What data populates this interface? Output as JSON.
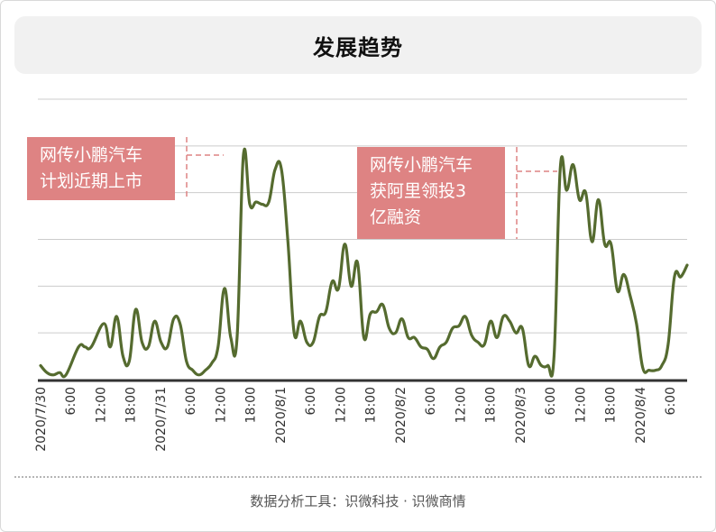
{
  "title": "发展趋势",
  "footer": "数据分析工具：识微科技 · 识微商情",
  "annotations": [
    {
      "lines": [
        "网传小鹏汽车",
        "计划近期上市"
      ]
    },
    {
      "lines": [
        "网传小鹏汽车",
        "获阿里领投3",
        "亿融资"
      ]
    }
  ],
  "colors": {
    "line": "#556b2f",
    "annotation": "#de8383",
    "grid": "#cccccc",
    "baseline": "#333333"
  },
  "chart_data": {
    "type": "line",
    "title": "",
    "xlabel": "",
    "ylabel": "",
    "ylim": [
      0,
      6
    ],
    "grid": true,
    "x_tick_labels": [
      "2020/7/30",
      "6:00",
      "12:00",
      "18:00",
      "2020/7/31",
      "6:00",
      "12:00",
      "18:00",
      "2020/8/1",
      "6:00",
      "12:00",
      "18:00",
      "2020/8/2",
      "6:00",
      "12:00",
      "18:00",
      "2020/8/3",
      "6:00",
      "12:00",
      "18:00",
      "2020/8/4",
      "6:00"
    ],
    "series": [
      {
        "values": [
          [
            0,
            0.3
          ],
          [
            1,
            0.15
          ],
          [
            2,
            0.1
          ],
          [
            3,
            0.15
          ],
          [
            4,
            0.1
          ],
          [
            6,
            0.7
          ],
          [
            7,
            0.7
          ],
          [
            8,
            0.7
          ],
          [
            10,
            1.2
          ],
          [
            11,
            0.7
          ],
          [
            12,
            1.35
          ],
          [
            13,
            0.5
          ],
          [
            14,
            0.4
          ],
          [
            15,
            1.5
          ],
          [
            16,
            0.8
          ],
          [
            17,
            0.7
          ],
          [
            18,
            1.25
          ],
          [
            19,
            0.8
          ],
          [
            20,
            0.7
          ],
          [
            21,
            1.3
          ],
          [
            22,
            1.2
          ],
          [
            23,
            0.4
          ],
          [
            24,
            0.2
          ],
          [
            25,
            0.1
          ],
          [
            26,
            0.2
          ],
          [
            27,
            0.35
          ],
          [
            28,
            0.7
          ],
          [
            29,
            1.95
          ],
          [
            30,
            0.9
          ],
          [
            31,
            0.9
          ],
          [
            32,
            4.8
          ],
          [
            33,
            3.75
          ],
          [
            34,
            3.8
          ],
          [
            35,
            3.75
          ],
          [
            36,
            3.8
          ],
          [
            37,
            4.5
          ],
          [
            38,
            4.5
          ],
          [
            39,
            3.0
          ],
          [
            40,
            1.0
          ],
          [
            41,
            1.25
          ],
          [
            42,
            0.8
          ],
          [
            43,
            0.8
          ],
          [
            44,
            1.35
          ],
          [
            45,
            1.45
          ],
          [
            46,
            2.1
          ],
          [
            47,
            1.95
          ],
          [
            48,
            2.9
          ],
          [
            49,
            2.0
          ],
          [
            50,
            2.5
          ],
          [
            51,
            0.9
          ],
          [
            52,
            1.4
          ],
          [
            53,
            1.45
          ],
          [
            54,
            1.6
          ],
          [
            55,
            1.1
          ],
          [
            56,
            1.0
          ],
          [
            57,
            1.3
          ],
          [
            58,
            0.9
          ],
          [
            59,
            0.9
          ],
          [
            60,
            0.7
          ],
          [
            61,
            0.65
          ],
          [
            62,
            0.45
          ],
          [
            63,
            0.7
          ],
          [
            64,
            0.8
          ],
          [
            65,
            1.1
          ],
          [
            66,
            1.15
          ],
          [
            67,
            1.35
          ],
          [
            68,
            0.95
          ],
          [
            69,
            0.8
          ],
          [
            70,
            0.75
          ],
          [
            71,
            1.25
          ],
          [
            72,
            0.9
          ],
          [
            73,
            1.35
          ],
          [
            74,
            1.25
          ],
          [
            75,
            1.0
          ],
          [
            76,
            1.1
          ],
          [
            77,
            0.3
          ],
          [
            78,
            0.5
          ],
          [
            79,
            0.3
          ],
          [
            80,
            0.3
          ],
          [
            81,
            0.5
          ],
          [
            82,
            4.55
          ],
          [
            83,
            4.05
          ],
          [
            84,
            4.6
          ],
          [
            85,
            3.85
          ],
          [
            86,
            4.0
          ],
          [
            87,
            2.95
          ],
          [
            88,
            3.85
          ],
          [
            89,
            2.9
          ],
          [
            90,
            2.9
          ],
          [
            91,
            1.9
          ],
          [
            92,
            2.25
          ],
          [
            93,
            1.8
          ],
          [
            94,
            1.2
          ],
          [
            95,
            0.25
          ],
          [
            96,
            0.2
          ],
          [
            97,
            0.2
          ],
          [
            98,
            0.3
          ],
          [
            99,
            0.75
          ],
          [
            100,
            2.2
          ],
          [
            101,
            2.2
          ],
          [
            102,
            2.45
          ]
        ]
      }
    ]
  }
}
